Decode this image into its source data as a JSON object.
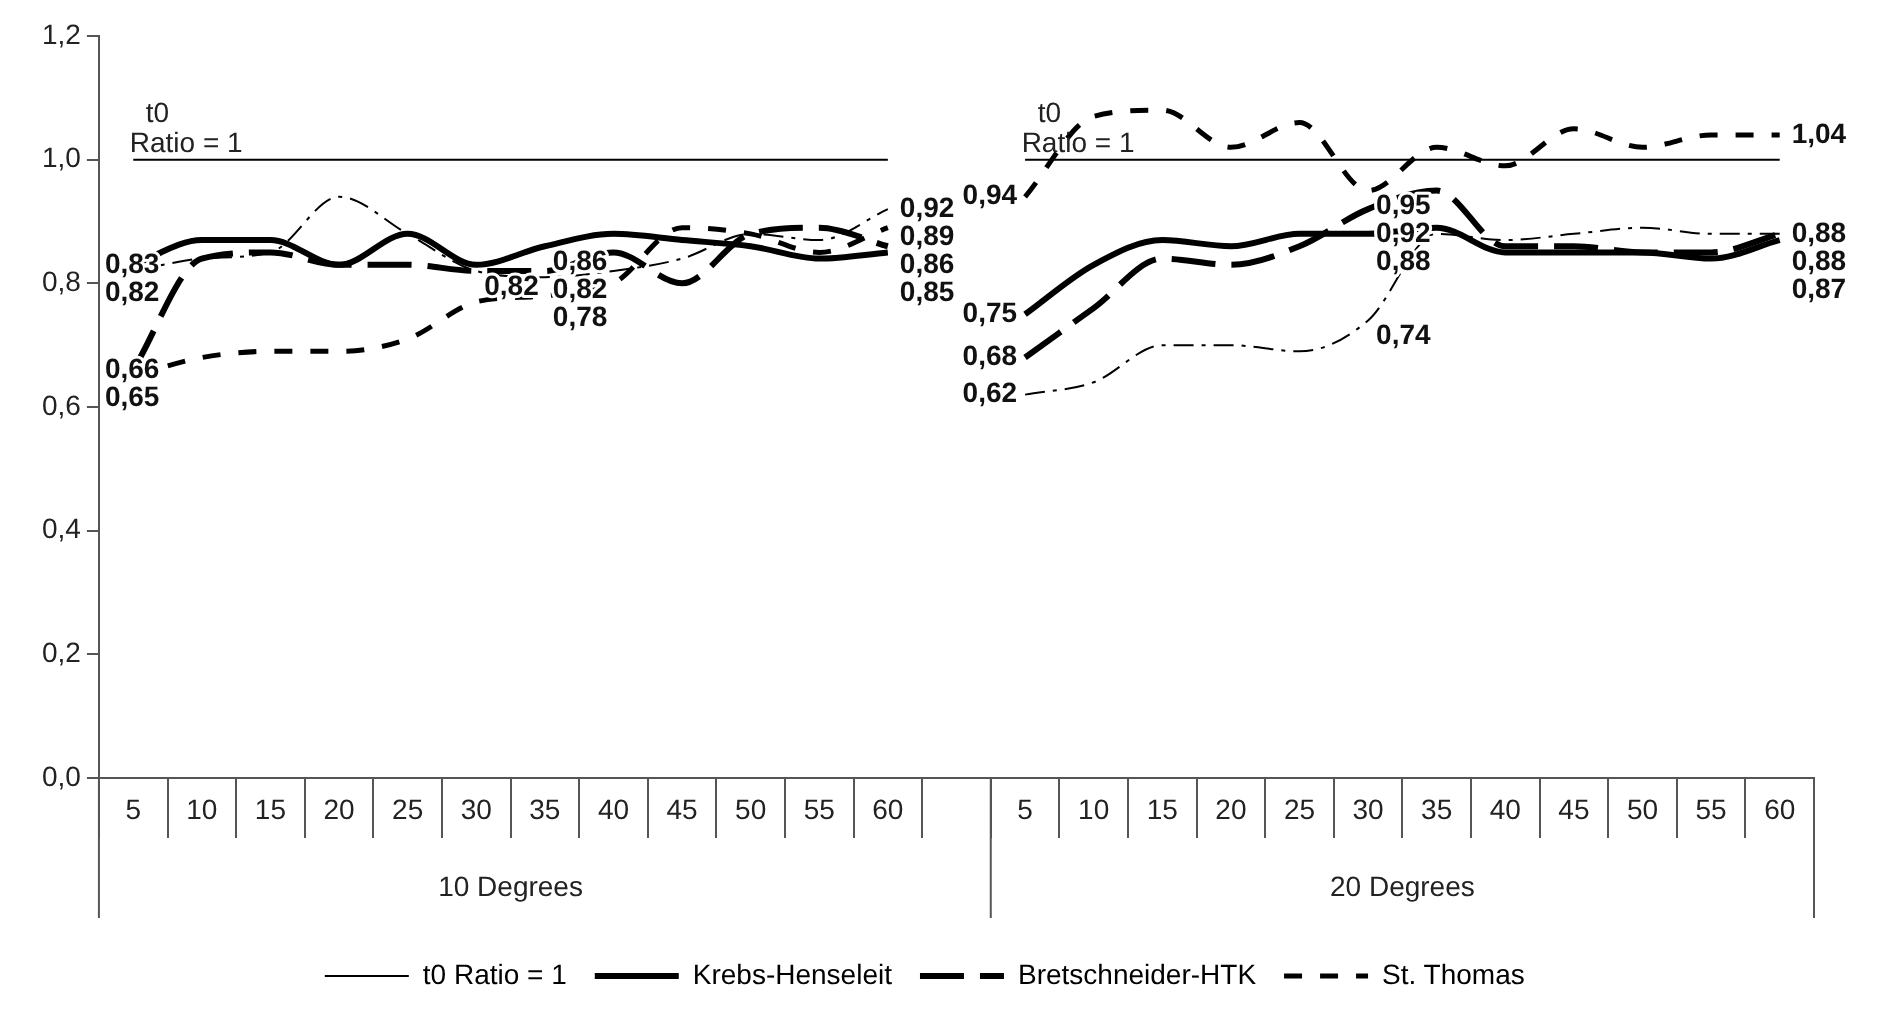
{
  "chart_data": {
    "type": "line",
    "categories": [
      "5",
      "10",
      "15",
      "20",
      "25",
      "30",
      "35",
      "40",
      "45",
      "50",
      "55",
      "60",
      null,
      "5",
      "10",
      "15",
      "20",
      "25",
      "30",
      "35",
      "40",
      "45",
      "50",
      "55",
      "60"
    ],
    "ylim": [
      0,
      1.2
    ],
    "yticks": [
      {
        "value": 0,
        "label": "0,0"
      },
      {
        "value": 0.2,
        "label": "0,2"
      },
      {
        "value": 0.4,
        "label": "0,4"
      },
      {
        "value": 0.6,
        "label": "0,6"
      },
      {
        "value": 0.8,
        "label": "0,8"
      },
      {
        "value": 1,
        "label": "1,0"
      },
      {
        "value": 1.2,
        "label": "1,2"
      }
    ],
    "grid": false,
    "legend": "bottom",
    "marker": "none",
    "annotations": [
      "10 Degrees",
      "20 Degrees"
    ],
    "series": [
      {
        "name": "t0\nRatio = 1",
        "color": "#000000",
        "line_style": "solid",
        "values": [
          1,
          1,
          1,
          1,
          1,
          1,
          1,
          1,
          1,
          1,
          1,
          1,
          null,
          1,
          1,
          1,
          1,
          1,
          1,
          1,
          1,
          1,
          1,
          1,
          1
        ]
      },
      {
        "name": "Krebs-Henseleit",
        "color": "#000000",
        "line_style": "solid",
        "values": [
          0.83,
          0.87,
          0.87,
          0.83,
          0.88,
          0.83,
          0.86,
          0.88,
          0.87,
          0.86,
          0.84,
          0.85,
          null,
          0.75,
          0.83,
          0.87,
          0.86,
          0.88,
          0.88,
          0.89,
          0.85,
          0.85,
          0.85,
          0.84,
          0.87
        ],
        "value_labels": [
          "0,83",
          null,
          null,
          null,
          null,
          null,
          "0,86",
          null,
          null,
          null,
          null,
          "0,85",
          null,
          "0,75",
          null,
          null,
          null,
          null,
          "0,88",
          null,
          null,
          null,
          null,
          null,
          "0,87"
        ]
      },
      {
        "name": "Bretschneider-HTK",
        "color": "#000000",
        "line_style": "dashed",
        "values": [
          0.66,
          0.84,
          0.85,
          0.83,
          0.83,
          0.82,
          0.82,
          0.85,
          0.8,
          0.88,
          0.89,
          0.86,
          null,
          0.68,
          0.76,
          0.84,
          0.83,
          0.86,
          0.92,
          0.95,
          0.86,
          0.86,
          0.85,
          0.85,
          0.88
        ],
        "value_labels": [
          "0,66",
          null,
          null,
          null,
          null,
          null,
          "0,82",
          null,
          null,
          null,
          null,
          "0,86",
          null,
          "0,68",
          null,
          null,
          null,
          null,
          "0,92",
          null,
          null,
          null,
          null,
          null,
          "0,88"
        ]
      },
      {
        "name": "St. Thomas",
        "color": "#000000",
        "line_style": "dashed",
        "values": [
          0.65,
          0.68,
          0.69,
          0.69,
          0.71,
          0.77,
          0.78,
          0.8,
          0.89,
          0.88,
          0.85,
          0.89,
          null,
          0.94,
          1.07,
          1.08,
          1.02,
          1.06,
          0.95,
          1.02,
          0.99,
          1.05,
          1.02,
          1.04,
          1.04
        ],
        "value_labels": [
          "0,65",
          null,
          null,
          null,
          null,
          null,
          "0,78",
          null,
          null,
          null,
          null,
          "0,89",
          null,
          "0,94",
          null,
          null,
          null,
          null,
          "0,95",
          null,
          null,
          null,
          null,
          null,
          "1,04"
        ]
      },
      {
        "color": "#000000",
        "line_style": "dashdot",
        "values": [
          0.82,
          0.84,
          0.85,
          0.94,
          0.88,
          0.82,
          0.81,
          0.82,
          0.84,
          0.88,
          0.87,
          0.92,
          null,
          0.62,
          0.64,
          0.7,
          0.7,
          0.69,
          0.74,
          0.88,
          0.87,
          0.88,
          0.89,
          0.88,
          0.88
        ],
        "value_labels": [
          "0,82",
          null,
          null,
          null,
          null,
          "0,82",
          null,
          null,
          null,
          null,
          null,
          "0,92",
          null,
          "0,62",
          null,
          null,
          null,
          null,
          "0,74",
          null,
          null,
          null,
          null,
          null,
          "0,88"
        ]
      }
    ]
  }
}
